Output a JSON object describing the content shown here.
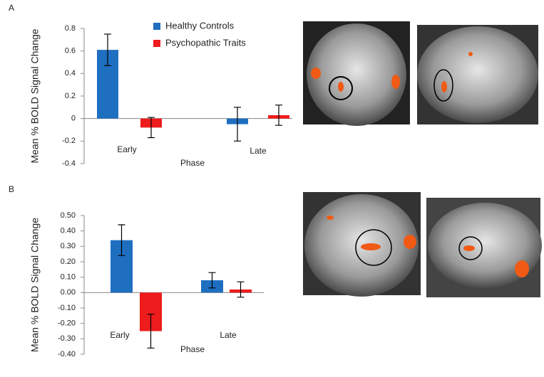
{
  "chart_data": [
    {
      "type": "bar",
      "panel_label": "A",
      "y_label": "Mean % BOLD Signal Change",
      "x_label": "Phase",
      "categories": [
        "Early",
        "Late"
      ],
      "series": [
        {
          "name": "Healthy Controls",
          "color": "#1f6fc1",
          "values": [
            0.61,
            -0.05
          ],
          "errors": [
            0.14,
            0.15
          ]
        },
        {
          "name": "Psychopathic Traits",
          "color": "#ee1c1c",
          "values": [
            -0.08,
            0.03
          ],
          "errors": [
            0.09,
            0.09
          ]
        }
      ],
      "ylim": [
        -0.4,
        0.8
      ],
      "yticks": [
        -0.4,
        -0.2,
        0,
        0.2,
        0.4,
        0.6,
        0.8
      ],
      "legend": "top-right"
    },
    {
      "type": "bar",
      "panel_label": "B",
      "y_label": "Mean % BOLD Signal Change",
      "x_label": "Phase",
      "categories": [
        "Early",
        "Late"
      ],
      "series": [
        {
          "name": "Healthy Controls",
          "color": "#1f6fc1",
          "values": [
            0.34,
            0.08
          ],
          "errors": [
            0.1,
            0.05
          ]
        },
        {
          "name": "Psychopathic Traits",
          "color": "#ee1c1c",
          "values": [
            -0.25,
            0.02
          ],
          "errors": [
            0.11,
            0.05
          ]
        }
      ],
      "ylim": [
        -0.4,
        0.5
      ],
      "yticks": [
        {
          "value": -0.4,
          "label": "-0.40"
        },
        {
          "value": -0.3,
          "label": "-0.30"
        },
        {
          "value": -0.2,
          "label": "-0.20"
        },
        {
          "value": -0.1,
          "label": "-0.10"
        },
        {
          "value": 0,
          "label": "0.00"
        },
        {
          "value": 0.1,
          "label": "0.10"
        },
        {
          "value": 0.2,
          "label": "0.20"
        },
        {
          "value": 0.3,
          "label": "0.30"
        },
        {
          "value": 0.4,
          "label": "0.40"
        },
        {
          "value": 0.5,
          "label": "0.50"
        }
      ],
      "legend": false
    }
  ]
}
